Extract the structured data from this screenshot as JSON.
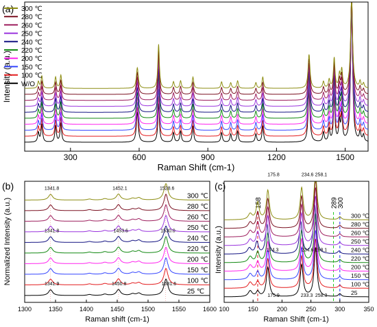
{
  "chart_data": [
    {
      "panel_label": "(a)",
      "type": "line",
      "xlabel": "Raman Shift (cm-1)",
      "ylabel": "Intensity (a.u.)",
      "xlim": [
        100,
        1600
      ],
      "xticks": [
        300,
        600,
        900,
        1200,
        1500
      ],
      "legend_position": "top-left",
      "grid": false,
      "series": [
        {
          "name": "W/O",
          "color": "#000000"
        },
        {
          "name": "100 ℃",
          "color": "#e31a1c"
        },
        {
          "name": "150 ℃",
          "color": "#3344ff"
        },
        {
          "name": "200 ℃",
          "color": "#ff22ee"
        },
        {
          "name": "220 ℃",
          "color": "#118811"
        },
        {
          "name": "240 ℃",
          "color": "#101080"
        },
        {
          "name": "250 ℃",
          "color": "#9933dd"
        },
        {
          "name": "260 ℃",
          "color": "#9c1c5c"
        },
        {
          "name": "280 ℃",
          "color": "#7a1020"
        },
        {
          "name": "300 ℃",
          "color": "#8c8c10"
        }
      ],
      "peaks": [
        {
          "x": 160,
          "h": 0.07,
          "w": 4
        },
        {
          "x": 175,
          "h": 0.13,
          "w": 4
        },
        {
          "x": 235,
          "h": 0.12,
          "w": 4
        },
        {
          "x": 258,
          "h": 0.14,
          "w": 4
        },
        {
          "x": 592,
          "h": 0.22,
          "w": 5
        },
        {
          "x": 685,
          "h": 0.47,
          "w": 4
        },
        {
          "x": 750,
          "h": 0.07,
          "w": 4
        },
        {
          "x": 781,
          "h": 0.08,
          "w": 4
        },
        {
          "x": 835,
          "h": 0.12,
          "w": 4
        },
        {
          "x": 960,
          "h": 0.07,
          "w": 4
        },
        {
          "x": 1000,
          "h": 0.06,
          "w": 4
        },
        {
          "x": 1030,
          "h": 0.08,
          "w": 4
        },
        {
          "x": 1110,
          "h": 0.06,
          "w": 4
        },
        {
          "x": 1140,
          "h": 0.12,
          "w": 4
        },
        {
          "x": 1342,
          "h": 0.36,
          "w": 5
        },
        {
          "x": 1405,
          "h": 0.07,
          "w": 4
        },
        {
          "x": 1430,
          "h": 0.09,
          "w": 4
        },
        {
          "x": 1452,
          "h": 0.32,
          "w": 4
        },
        {
          "x": 1475,
          "h": 0.14,
          "w": 4
        },
        {
          "x": 1485,
          "h": 0.19,
          "w": 4
        },
        {
          "x": 1528,
          "h": 1.0,
          "w": 5
        },
        {
          "x": 1565,
          "h": 0.07,
          "w": 4
        },
        {
          "x": 1580,
          "h": 0.05,
          "w": 4
        }
      ],
      "offset_step": 0.07
    },
    {
      "panel_label": "(b)",
      "type": "line",
      "xlabel": "Raman shift (cm-1)",
      "ylabel": "Normalized Intensity (a.u.)",
      "xlim": [
        1300,
        1600
      ],
      "xticks": [
        1300,
        1350,
        1400,
        1450,
        1500,
        1550,
        1600
      ],
      "series": [
        {
          "name": "25 ℃",
          "color": "#000000"
        },
        {
          "name": "100 ℃",
          "color": "#e31a1c"
        },
        {
          "name": "150 ℃",
          "color": "#3344ff"
        },
        {
          "name": "200 ℃",
          "color": "#ff22ee"
        },
        {
          "name": "220 ℃",
          "color": "#118811"
        },
        {
          "name": "240 ℃",
          "color": "#101080"
        },
        {
          "name": "250 ℃",
          "color": "#9933dd"
        },
        {
          "name": "260 ℃",
          "color": "#9c1c5c"
        },
        {
          "name": "280 ℃",
          "color": "#7a1020"
        },
        {
          "name": "300 ℃",
          "color": "#8c8c10"
        }
      ],
      "peaks": [
        {
          "x": 1342,
          "h": 0.35,
          "w": 4
        },
        {
          "x": 1405,
          "h": 0.06,
          "w": 4
        },
        {
          "x": 1430,
          "h": 0.08,
          "w": 4
        },
        {
          "x": 1452,
          "h": 0.36,
          "w": 4
        },
        {
          "x": 1475,
          "h": 0.1,
          "w": 4
        },
        {
          "x": 1485,
          "h": 0.14,
          "w": 4
        },
        {
          "x": 1529,
          "h": 1.0,
          "w": 4
        }
      ],
      "offset_step": 0.3,
      "guides": [
        1341.8,
        1452.1,
        1528.6
      ],
      "annotations": [
        {
          "text": "1341.8",
          "x": 1341.8,
          "series": 9,
          "color": "#8c8c10"
        },
        {
          "text": "1452.1",
          "x": 1452.1,
          "series": 9,
          "color": "#8c8c10"
        },
        {
          "text": "1528.6",
          "x": 1528.6,
          "series": 9,
          "color": "#8c8c10"
        },
        {
          "text": "1341.8",
          "x": 1341.8,
          "series": 5,
          "color": "#101080"
        },
        {
          "text": "1453.6",
          "x": 1453.6,
          "series": 5,
          "color": "#101080"
        },
        {
          "text": "1530.0",
          "x": 1530.0,
          "series": 5,
          "color": "#101080"
        },
        {
          "text": "1341.9",
          "x": 1341.9,
          "series": 0,
          "color": "#000000"
        },
        {
          "text": "1450.8",
          "x": 1450.8,
          "series": 0,
          "color": "#000000"
        },
        {
          "text": "1531.6",
          "x": 1531.6,
          "series": 0,
          "color": "#000000"
        }
      ]
    },
    {
      "panel_label": "(c)",
      "type": "line",
      "xlabel": "Raman Shift (cm-1)",
      "ylabel": "Intensity (a.u.)",
      "xlim": [
        100,
        350
      ],
      "xticks": [
        100,
        150,
        200,
        250,
        300,
        350
      ],
      "series": [
        {
          "name": "25",
          "color": "#000000"
        },
        {
          "name": "100 ℃",
          "color": "#e31a1c"
        },
        {
          "name": "150 ℃",
          "color": "#3344ff"
        },
        {
          "name": "200 ℃",
          "color": "#ff22ee"
        },
        {
          "name": "220 ℃",
          "color": "#118811"
        },
        {
          "name": "240 ℃",
          "color": "#101080"
        },
        {
          "name": "250 ℃",
          "color": "#9933dd"
        },
        {
          "name": "260 ℃",
          "color": "#9c1c5c"
        },
        {
          "name": "280 ℃",
          "color": "#7a1020"
        },
        {
          "name": "300 ℃",
          "color": "#8c8c10"
        }
      ],
      "peaks": [
        {
          "x": 145,
          "h": 0.12,
          "w": 4
        },
        {
          "x": 158,
          "h": 0.35,
          "w": 3
        },
        {
          "x": 175.5,
          "h": 0.6,
          "w": 3
        },
        {
          "x": 234,
          "h": 0.65,
          "w": 3
        },
        {
          "x": 258,
          "h": 1.0,
          "w": 3
        },
        {
          "x": 300,
          "h": 0.06,
          "w": 3
        }
      ],
      "offset_step": 0.14,
      "guides": [
        {
          "x": 158,
          "color": "#e31a1c",
          "label": "158"
        },
        {
          "x": 289,
          "color": "#22cc22",
          "label": "289"
        },
        {
          "x": 300,
          "color": "#2233ee",
          "label": "300"
        }
      ],
      "annotations": [
        {
          "text": "175.8",
          "x": 175.8,
          "series": 9,
          "color": "#8c8c10"
        },
        {
          "text": "234.6",
          "x": 234.6,
          "series": 9,
          "color": "#8c8c10"
        },
        {
          "text": "258.1",
          "x": 258.1,
          "series": 9,
          "color": "#8c8c10"
        },
        {
          "text": "174.3",
          "x": 174.3,
          "series": 5,
          "color": "#101080"
        },
        {
          "text": "234.6",
          "x": 234.6,
          "series": 5,
          "color": "#101080"
        },
        {
          "text": "258.1",
          "x": 258.1,
          "series": 5,
          "color": "#101080"
        },
        {
          "text": "175.9",
          "x": 175.9,
          "series": 0,
          "color": "#000000"
        },
        {
          "text": "233.3",
          "x": 233.3,
          "series": 0,
          "color": "#000000"
        },
        {
          "text": "258.3",
          "x": 258.3,
          "series": 0,
          "color": "#000000"
        }
      ]
    }
  ]
}
